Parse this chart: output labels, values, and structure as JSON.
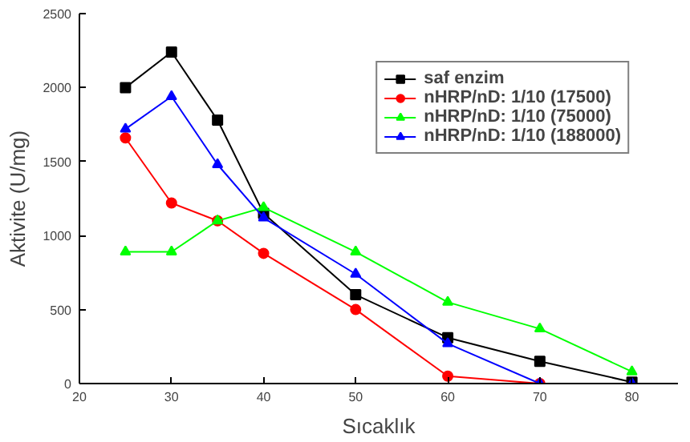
{
  "chart_data": {
    "type": "line",
    "xlabel": "Sıcaklık",
    "ylabel": "Aktivite (U/mg)",
    "xlim": [
      20,
      85
    ],
    "xticks": [
      20,
      30,
      40,
      50,
      60,
      70,
      80
    ],
    "ylim": [
      0,
      2500
    ],
    "yticks": [
      0,
      500,
      1000,
      1500,
      2000,
      2500
    ],
    "grid": false,
    "legend": "top right",
    "series": [
      {
        "name": "saf enzim",
        "color": "#000000",
        "marker": "square",
        "x": [
          25,
          30,
          35,
          40,
          50,
          60,
          70,
          80
        ],
        "values": [
          2000,
          2240,
          1780,
          1150,
          600,
          310,
          150,
          10
        ]
      },
      {
        "name": "nHRP/nD: 1/10 (17500)",
        "color": "#ff0000",
        "marker": "circle",
        "x": [
          25,
          30,
          35,
          40,
          50,
          60,
          70
        ],
        "values": [
          1660,
          1220,
          1100,
          880,
          500,
          50,
          0
        ]
      },
      {
        "name": "nHRP/nD: 1/10 (75000)",
        "color": "#00ff00",
        "marker": "triangle",
        "x": [
          25,
          30,
          35,
          40,
          50,
          60,
          70,
          80
        ],
        "values": [
          890,
          890,
          1100,
          1190,
          890,
          550,
          370,
          80
        ]
      },
      {
        "name": "nHRP/nD: 1/10 (188000)",
        "color": "#0000ff",
        "marker": "triangle",
        "x": [
          25,
          30,
          35,
          40,
          50,
          60,
          70,
          80
        ],
        "values": [
          1720,
          1940,
          1480,
          1120,
          740,
          270,
          0,
          0
        ]
      }
    ]
  }
}
